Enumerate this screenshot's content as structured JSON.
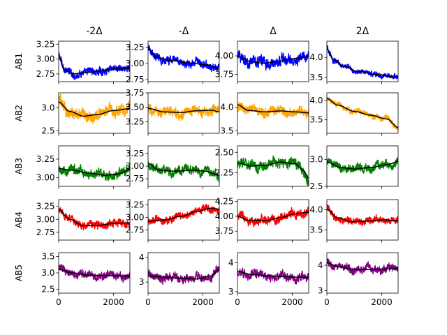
{
  "chart_data": {
    "type": "line",
    "layout": "grid-5x4",
    "column_titles": [
      "-2Δ",
      "-Δ",
      "Δ",
      "2Δ"
    ],
    "row_labels": [
      "AB1",
      "AB2",
      "AB3",
      "AB4",
      "AB5"
    ],
    "x_range": [
      0,
      2600
    ],
    "x_ticks": [
      0,
      2000
    ],
    "x_tick_labels": [
      "0",
      "2000"
    ],
    "trend_color": "#000000",
    "rows": [
      {
        "label": "AB1",
        "color": "#0000ff",
        "panels": [
          {
            "ylim": [
              2.62,
              3.3
            ],
            "yticks": [
              2.75,
              3.0,
              3.25
            ],
            "ytick_labels": [
              "2.75",
              "3.00",
              "3.25"
            ],
            "noise": 0.05,
            "trend": [
              [
                0,
                3.05
              ],
              [
                200,
                2.82
              ],
              [
                500,
                2.75
              ],
              [
                1000,
                2.77
              ],
              [
                1500,
                2.8
              ],
              [
                2000,
                2.83
              ],
              [
                2600,
                2.85
              ]
            ]
          },
          {
            "ylim": [
              2.72,
              3.35
            ],
            "yticks": [
              2.75,
              3.0,
              3.25
            ],
            "ytick_labels": [
              "2.75",
              "3.00",
              "3.25"
            ],
            "noise": 0.05,
            "trend": [
              [
                0,
                3.22
              ],
              [
                300,
                3.1
              ],
              [
                800,
                3.05
              ],
              [
                1500,
                3.01
              ],
              [
                2200,
                2.98
              ],
              [
                2600,
                2.92
              ]
            ]
          },
          {
            "ylim": [
              3.65,
              4.2
            ],
            "yticks": [
              3.75,
              4.0
            ],
            "ytick_labels": [
              "3.75",
              "4.00"
            ],
            "noise": 0.06,
            "trend": [
              [
                0,
                3.99
              ],
              [
                500,
                3.92
              ],
              [
                1000,
                3.9
              ],
              [
                1500,
                3.93
              ],
              [
                2000,
                3.96
              ],
              [
                2600,
                3.99
              ]
            ]
          },
          {
            "ylim": [
              3.4,
              4.4
            ],
            "yticks": [
              3.5,
              4.0
            ],
            "ytick_labels": [
              "3.5",
              "4.0"
            ],
            "noise": 0.05,
            "trend": [
              [
                0,
                4.2
              ],
              [
                250,
                3.95
              ],
              [
                600,
                3.78
              ],
              [
                1100,
                3.66
              ],
              [
                1800,
                3.58
              ],
              [
                2600,
                3.5
              ]
            ]
          }
        ]
      },
      {
        "label": "AB2",
        "color": "#ffa500",
        "panels": [
          {
            "ylim": [
              2.45,
              3.32
            ],
            "yticks": [
              2.5,
              3.0
            ],
            "ytick_labels": [
              "2.5",
              "3.0"
            ],
            "noise": 0.1,
            "trend": [
              [
                0,
                3.12
              ],
              [
                400,
                2.92
              ],
              [
                900,
                2.82
              ],
              [
                1400,
                2.85
              ],
              [
                2000,
                2.94
              ],
              [
                2600,
                2.98
              ]
            ]
          },
          {
            "ylim": [
              3.05,
              3.75
            ],
            "yticks": [
              3.25,
              3.5,
              3.75
            ],
            "ytick_labels": [
              "3.25",
              "3.50",
              "3.75"
            ],
            "noise": 0.07,
            "trend": [
              [
                0,
                3.48
              ],
              [
                600,
                3.42
              ],
              [
                1200,
                3.41
              ],
              [
                1800,
                3.44
              ],
              [
                2300,
                3.45
              ],
              [
                2600,
                3.42
              ]
            ]
          },
          {
            "ylim": [
              3.45,
              4.3
            ],
            "yticks": [
              3.5,
              4.0
            ],
            "ytick_labels": [
              "3.5",
              "4.0"
            ],
            "noise": 0.08,
            "trend": [
              [
                0,
                4.05
              ],
              [
                400,
                3.93
              ],
              [
                1000,
                3.9
              ],
              [
                1600,
                3.92
              ],
              [
                2100,
                3.9
              ],
              [
                2600,
                3.88
              ]
            ]
          },
          {
            "ylim": [
              3.15,
              4.2
            ],
            "yticks": [
              3.5,
              4.0
            ],
            "ytick_labels": [
              "3.5",
              "4.0"
            ],
            "noise": 0.06,
            "trend": [
              [
                0,
                4.05
              ],
              [
                400,
                3.88
              ],
              [
                1000,
                3.72
              ],
              [
                1600,
                3.62
              ],
              [
                2200,
                3.52
              ],
              [
                2600,
                3.3
              ]
            ]
          }
        ]
      },
      {
        "label": "AB3",
        "color": "#008000",
        "panels": [
          {
            "ylim": [
              2.88,
              3.43
            ],
            "yticks": [
              3.0,
              3.25
            ],
            "ytick_labels": [
              "3.00",
              "3.25"
            ],
            "noise": 0.05,
            "trend": [
              [
                0,
                3.12
              ],
              [
                500,
                3.1
              ],
              [
                1100,
                3.06
              ],
              [
                1700,
                3.03
              ],
              [
                2200,
                3.05
              ],
              [
                2600,
                3.11
              ]
            ]
          },
          {
            "ylim": [
              2.6,
              3.4
            ],
            "yticks": [
              2.75,
              3.0,
              3.25
            ],
            "ytick_labels": [
              "2.75",
              "3.00",
              "3.25"
            ],
            "noise": 0.07,
            "trend": [
              [
                0,
                3.05
              ],
              [
                400,
                2.92
              ],
              [
                1000,
                2.9
              ],
              [
                1600,
                2.92
              ],
              [
                2100,
                2.9
              ],
              [
                2600,
                2.82
              ]
            ]
          },
          {
            "ylim": [
              2.08,
              2.58
            ],
            "yticks": [
              2.25,
              2.5
            ],
            "ytick_labels": [
              "2.25",
              "2.50"
            ],
            "noise": 0.05,
            "trend": [
              [
                0,
                2.37
              ],
              [
                500,
                2.33
              ],
              [
                1000,
                2.34
              ],
              [
                1600,
                2.38
              ],
              [
                2100,
                2.36
              ],
              [
                2400,
                2.28
              ],
              [
                2600,
                2.18
              ]
            ]
          },
          {
            "ylim": [
              2.5,
              3.25
            ],
            "yticks": [
              2.5,
              3.0
            ],
            "ytick_labels": [
              "2.5",
              "3.0"
            ],
            "noise": 0.06,
            "trend": [
              [
                0,
                2.95
              ],
              [
                500,
                2.85
              ],
              [
                1000,
                2.82
              ],
              [
                1600,
                2.85
              ],
              [
                2200,
                2.9
              ],
              [
                2600,
                2.96
              ]
            ]
          }
        ]
      },
      {
        "label": "AB4",
        "color": "#ff0000",
        "panels": [
          {
            "ylim": [
              2.6,
              3.38
            ],
            "yticks": [
              2.75,
              3.0,
              3.25
            ],
            "ytick_labels": [
              "2.75",
              "3.00",
              "3.25"
            ],
            "noise": 0.06,
            "trend": [
              [
                0,
                3.18
              ],
              [
                400,
                3.0
              ],
              [
                900,
                2.88
              ],
              [
                1400,
                2.88
              ],
              [
                2000,
                2.92
              ],
              [
                2600,
                2.93
              ]
            ]
          },
          {
            "ylim": [
              2.55,
              3.35
            ],
            "yticks": [
              2.75,
              3.0,
              3.25
            ],
            "ytick_labels": [
              "2.75",
              "3.00",
              "3.25"
            ],
            "noise": 0.06,
            "trend": [
              [
                0,
                2.92
              ],
              [
                600,
                2.95
              ],
              [
                1200,
                3.02
              ],
              [
                1800,
                3.12
              ],
              [
                2300,
                3.18
              ],
              [
                2600,
                3.16
              ]
            ]
          },
          {
            "ylim": [
              3.6,
              4.28
            ],
            "yticks": [
              3.75,
              4.0,
              4.25
            ],
            "ytick_labels": [
              "3.75",
              "4.00",
              "4.25"
            ],
            "noise": 0.06,
            "trend": [
              [
                0,
                4.0
              ],
              [
                400,
                3.93
              ],
              [
                1000,
                3.93
              ],
              [
                1600,
                3.98
              ],
              [
                2100,
                4.04
              ],
              [
                2600,
                4.07
              ]
            ]
          },
          {
            "ylim": [
              3.25,
              4.25
            ],
            "yticks": [
              3.5,
              4.0
            ],
            "ytick_labels": [
              "3.5",
              "4.0"
            ],
            "noise": 0.07,
            "trend": [
              [
                0,
                4.0
              ],
              [
                400,
                3.8
              ],
              [
                900,
                3.7
              ],
              [
                1500,
                3.72
              ],
              [
                2100,
                3.75
              ],
              [
                2600,
                3.72
              ]
            ]
          }
        ]
      },
      {
        "label": "AB5",
        "color": "#800080",
        "panels": [
          {
            "ylim": [
              2.38,
              3.62
            ],
            "yticks": [
              2.5,
              3.0,
              3.5
            ],
            "ytick_labels": [
              "2.5",
              "3.0",
              "3.5"
            ],
            "noise": 0.1,
            "trend": [
              [
                0,
                3.1
              ],
              [
                500,
                3.0
              ],
              [
                1100,
                2.93
              ],
              [
                1700,
                2.92
              ],
              [
                2200,
                2.91
              ],
              [
                2600,
                2.9
              ]
            ]
          },
          {
            "ylim": [
              2.55,
              4.2
            ],
            "yticks": [
              3,
              4
            ],
            "ytick_labels": [
              "3",
              "4"
            ],
            "noise": 0.14,
            "trend": [
              [
                0,
                3.25
              ],
              [
                600,
                3.2
              ],
              [
                1200,
                3.15
              ],
              [
                1800,
                3.13
              ],
              [
                2300,
                3.25
              ],
              [
                2600,
                3.5
              ]
            ]
          },
          {
            "ylim": [
              2.95,
              4.35
            ],
            "yticks": [
              3,
              4
            ],
            "ytick_labels": [
              "3",
              "4"
            ],
            "noise": 0.12,
            "trend": [
              [
                0,
                3.7
              ],
              [
                500,
                3.6
              ],
              [
                1100,
                3.55
              ],
              [
                1700,
                3.52
              ],
              [
                2200,
                3.5
              ],
              [
                2600,
                3.5
              ]
            ]
          },
          {
            "ylim": [
              2.9,
              4.5
            ],
            "yticks": [
              3,
              4
            ],
            "ytick_labels": [
              "3",
              "4"
            ],
            "noise": 0.13,
            "trend": [
              [
                0,
                4.1
              ],
              [
                400,
                3.95
              ],
              [
                900,
                3.85
              ],
              [
                1400,
                3.83
              ],
              [
                2000,
                3.85
              ],
              [
                2600,
                3.88
              ]
            ]
          }
        ]
      }
    ]
  }
}
